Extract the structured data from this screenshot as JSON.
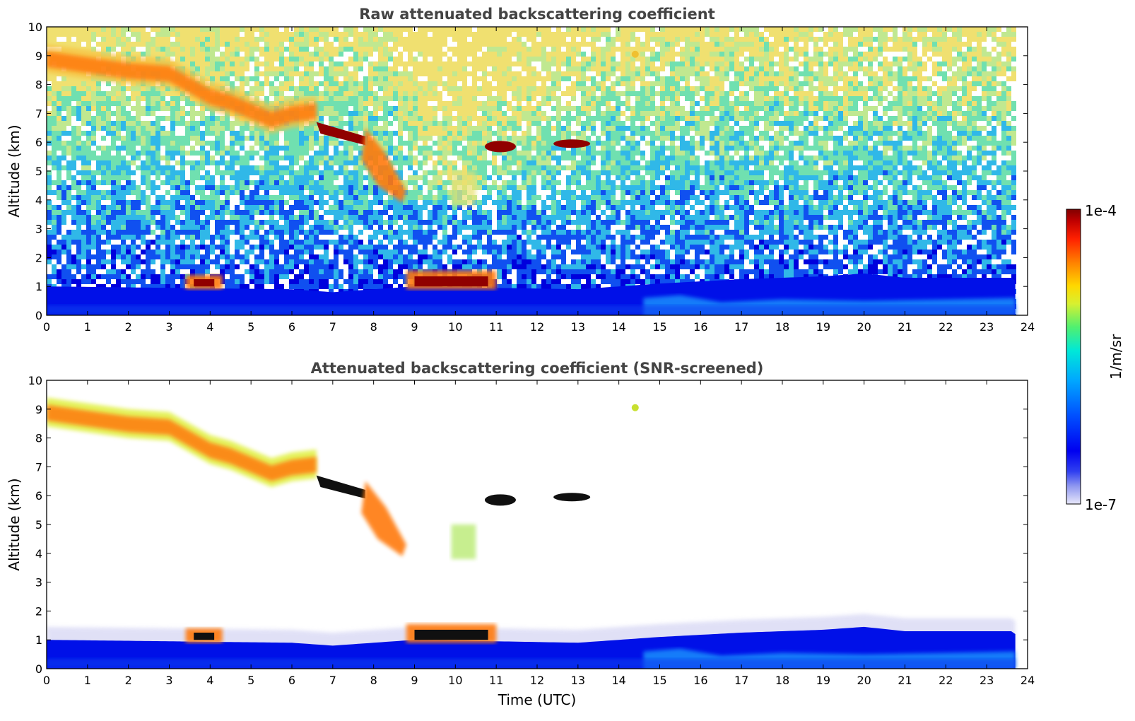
{
  "chart_data": [
    {
      "type": "heatmap",
      "title": "Raw attenuated backscattering coefficient",
      "xlabel": "",
      "ylabel": "Altitude (km)",
      "xlim": [
        0,
        24
      ],
      "ylim": [
        0,
        10
      ],
      "x_ticks": [
        "0",
        "1",
        "2",
        "3",
        "4",
        "5",
        "6",
        "7",
        "8",
        "9",
        "10",
        "11",
        "12",
        "13",
        "14",
        "15",
        "16",
        "17",
        "18",
        "19",
        "20",
        "21",
        "22",
        "23",
        "24"
      ],
      "y_ticks": [
        "0",
        "1",
        "2",
        "3",
        "4",
        "5",
        "6",
        "7",
        "8",
        "9",
        "10"
      ],
      "data_end_time": 23.7,
      "features": [
        {
          "name": "boundary layer",
          "t": [
            0,
            23.7
          ],
          "altitude_top": [
            1.0,
            0.9,
            0.8,
            1.0,
            1.3,
            1.3
          ]
        },
        {
          "name": "cirrus",
          "t": [
            0,
            6.6
          ],
          "altitude": [
            8.8,
            6.6
          ]
        },
        {
          "name": "cloud",
          "t": [
            6.6,
            8.8
          ],
          "altitude": [
            6.5,
            4.1
          ]
        },
        {
          "name": "cloud",
          "t": [
            10.7,
            11.5
          ],
          "altitude": [
            5.9
          ]
        },
        {
          "name": "cloud",
          "t": [
            12.3,
            13.3
          ],
          "altitude": [
            5.95
          ]
        },
        {
          "name": "cloud",
          "t": [
            3.4,
            4.2
          ],
          "altitude": [
            1.15
          ]
        },
        {
          "name": "cloud",
          "t": [
            8.8,
            11.0
          ],
          "altitude": [
            1.2
          ]
        }
      ]
    },
    {
      "type": "heatmap",
      "title": "Attenuated backscattering coefficient (SNR-screened)",
      "xlabel": "Time (UTC)",
      "ylabel": "Altitude (km)",
      "xlim": [
        0,
        24
      ],
      "ylim": [
        0,
        10
      ],
      "x_ticks": [
        "0",
        "1",
        "2",
        "3",
        "4",
        "5",
        "6",
        "7",
        "8",
        "9",
        "10",
        "11",
        "12",
        "13",
        "14",
        "15",
        "16",
        "17",
        "18",
        "19",
        "20",
        "21",
        "22",
        "23",
        "24"
      ],
      "y_ticks": [
        "0",
        "1",
        "2",
        "3",
        "4",
        "5",
        "6",
        "7",
        "8",
        "9",
        "10"
      ],
      "data_end_time": 23.7
    }
  ],
  "colorbar": {
    "label": "1/m/sr",
    "max_label": "1e-4",
    "min_label": "1e-7",
    "scale": "log",
    "colormap": [
      "#e0e0f8",
      "#a0a8f0",
      "#6070f0",
      "#0000f0",
      "#0040ff",
      "#00a0ff",
      "#00e8e0",
      "#40f080",
      "#c0f040",
      "#ffe000",
      "#ff9000",
      "#ff3000",
      "#b00000",
      "#800000"
    ]
  },
  "colors": {
    "bl_dark": "#0010e8",
    "bl_light": "#1aa0ff",
    "noise_blue": "#0000dd",
    "noise_cyan": "#40c8e8",
    "noise_green": "#90e090",
    "noise_yellow": "#f0e070",
    "cirrus_orange": "#ff7a10",
    "cirrus_yellow": "#e0f040",
    "cloud_dark_red": "#900000",
    "screened_black": "#101010"
  }
}
